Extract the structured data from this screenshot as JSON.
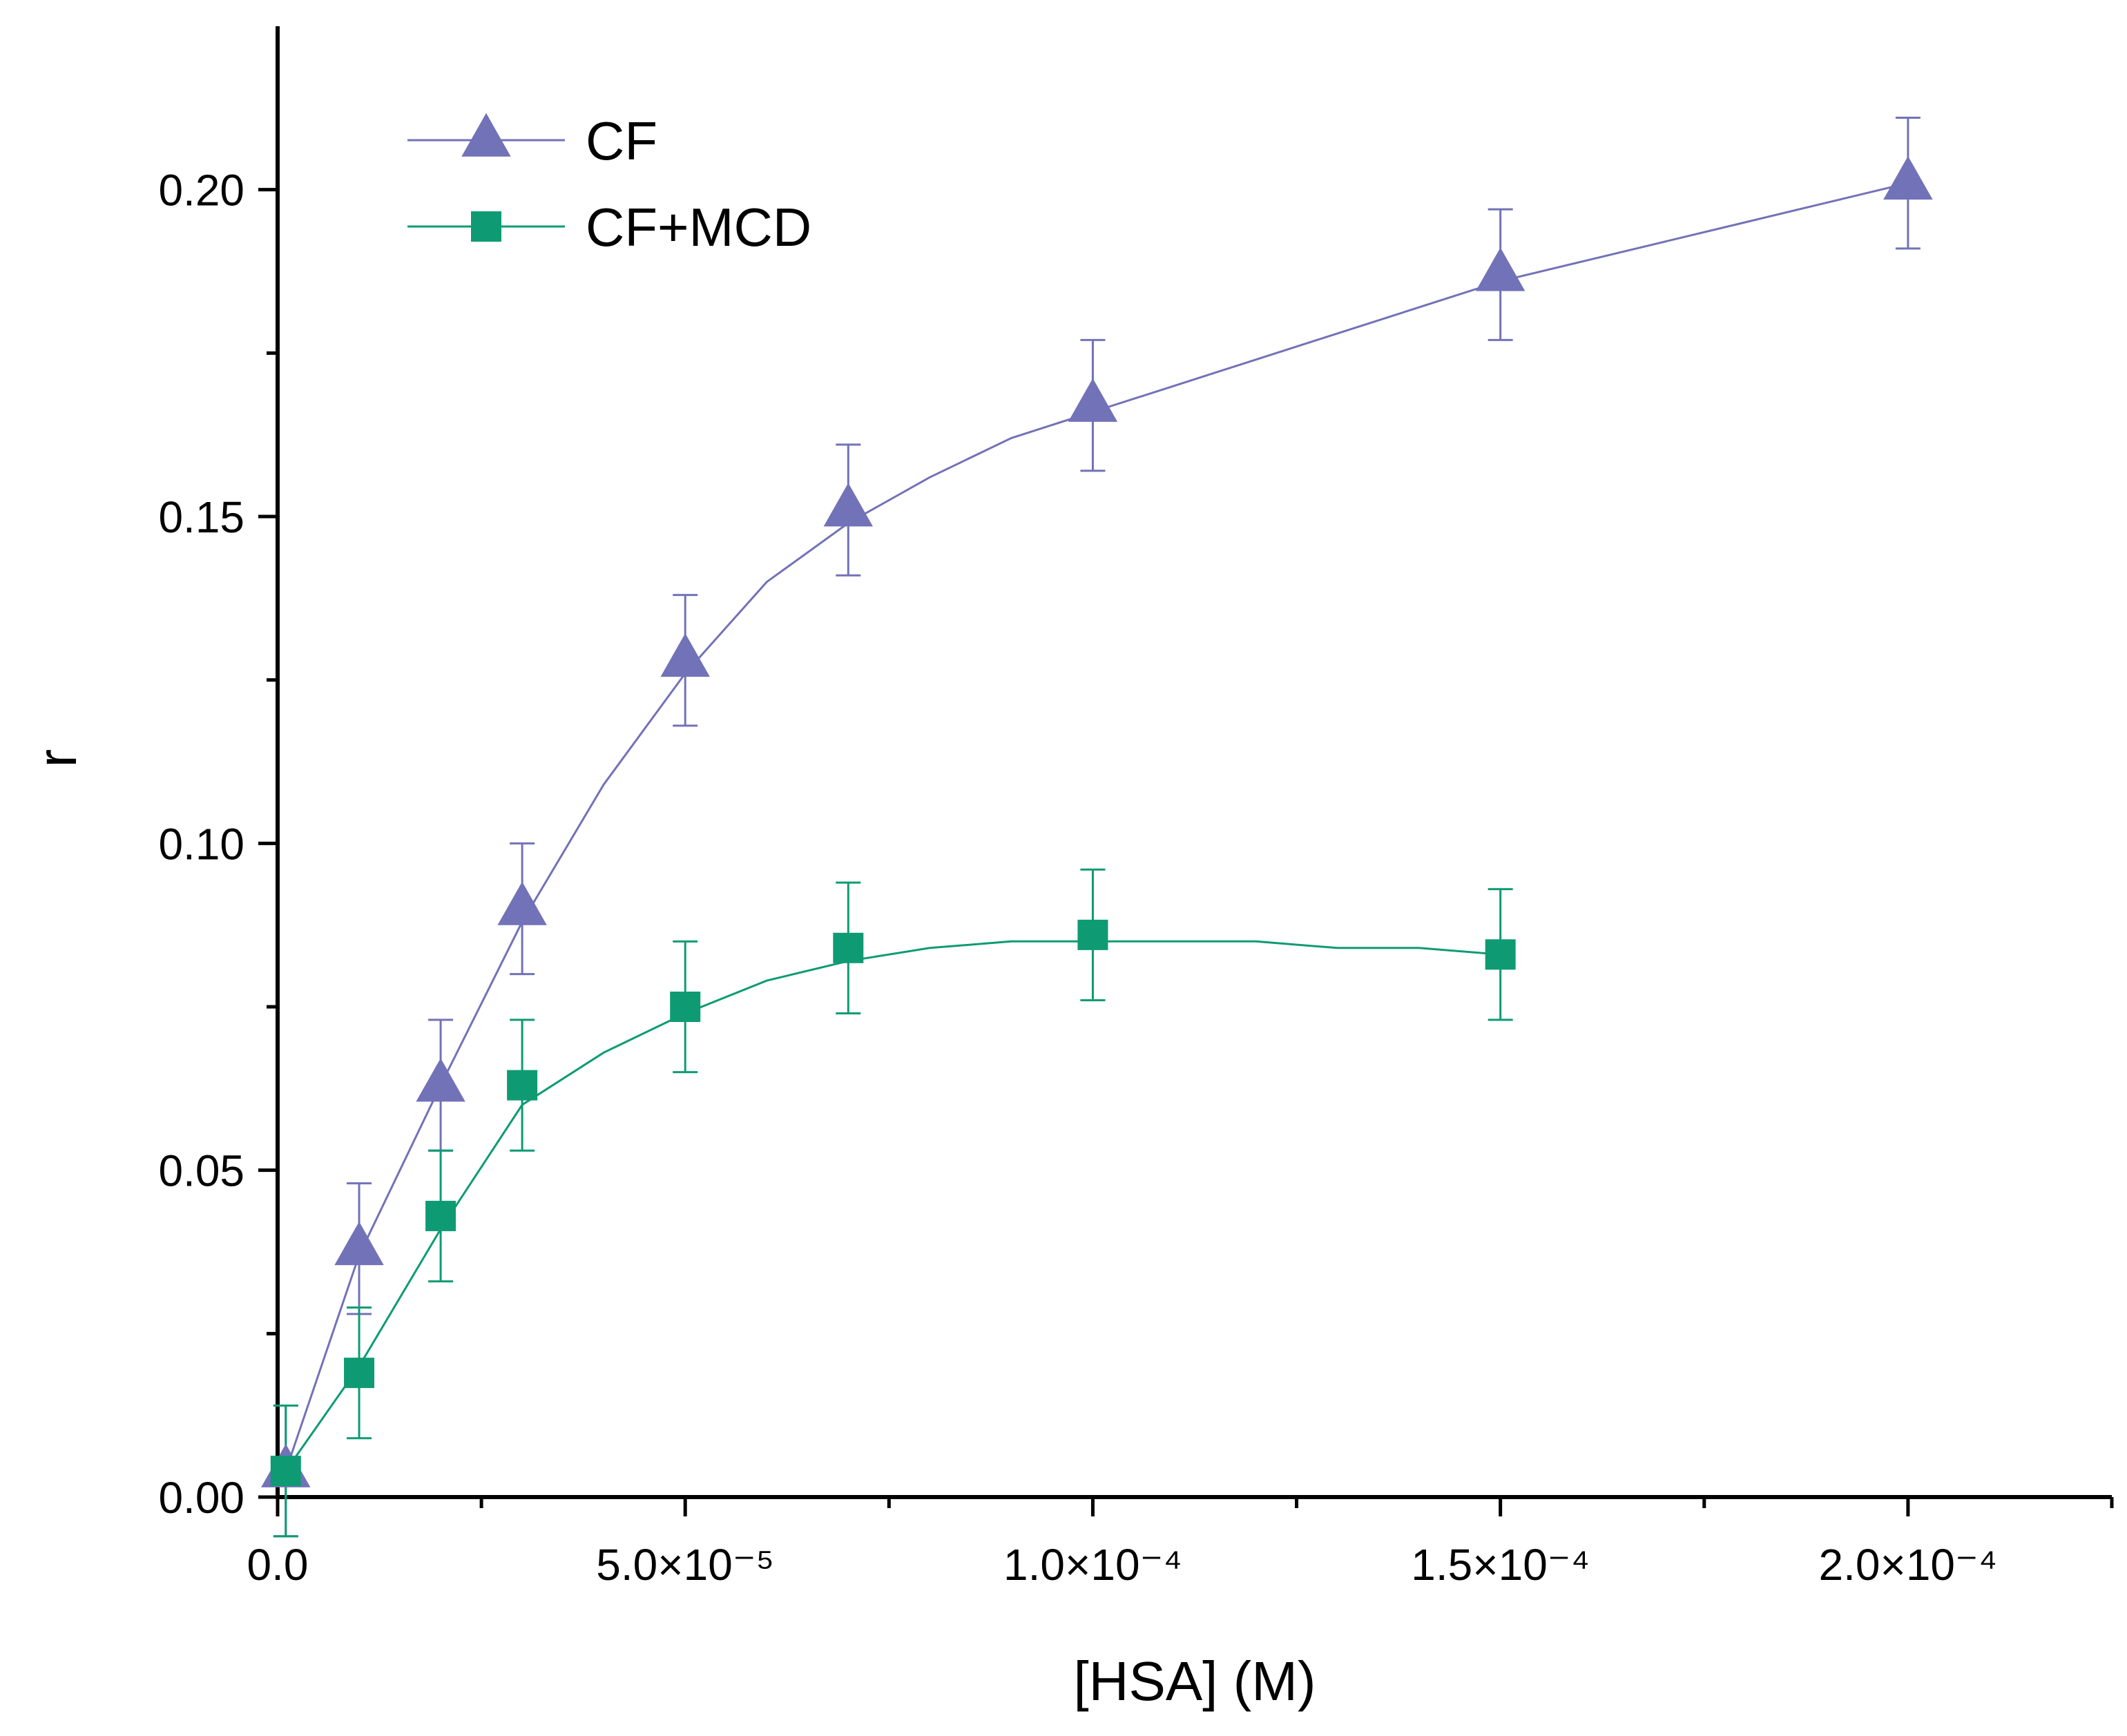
{
  "chart_data": {
    "type": "scatter",
    "title": "",
    "xlabel": "[HSA] (M)",
    "ylabel": "r",
    "xlim": [
      0,
      0.000225
    ],
    "ylim": [
      0,
      0.225
    ],
    "x_ticks": [
      {
        "value": 0,
        "label": "0.0"
      },
      {
        "value": 5e-05,
        "label": "5.0×10⁻⁵"
      },
      {
        "value": 0.0001,
        "label": "1.0×10⁻⁴"
      },
      {
        "value": 0.00015,
        "label": "1.5×10⁻⁴"
      },
      {
        "value": 0.0002,
        "label": "2.0×10⁻⁴"
      }
    ],
    "x_minor_ticks": [
      2.5e-05,
      7.5e-05,
      0.000125,
      0.000175,
      0.000225
    ],
    "y_ticks": [
      {
        "value": 0,
        "label": "0.00"
      },
      {
        "value": 0.05,
        "label": "0.05"
      },
      {
        "value": 0.1,
        "label": "0.10"
      },
      {
        "value": 0.15,
        "label": "0.15"
      },
      {
        "value": 0.2,
        "label": "0.20"
      }
    ],
    "y_minor_ticks": [
      0.025,
      0.075,
      0.125,
      0.175
    ],
    "grid": false,
    "legend_position": "top-left",
    "series": [
      {
        "name": "CF",
        "color": "#7272b8",
        "marker": "triangle",
        "x": [
          1e-06,
          1e-05,
          2e-05,
          3e-05,
          5e-05,
          7e-05,
          0.0001,
          0.00015,
          0.0002
        ],
        "y": [
          0.004,
          0.038,
          0.063,
          0.09,
          0.128,
          0.151,
          0.167,
          0.187,
          0.201
        ],
        "error": [
          0.01,
          0.01,
          0.01,
          0.01,
          0.01,
          0.01,
          0.01,
          0.01,
          0.01
        ],
        "fit": [
          [
            1e-06,
            0.004
          ],
          [
            1e-05,
            0.037
          ],
          [
            2e-05,
            0.063
          ],
          [
            3e-05,
            0.088
          ],
          [
            4e-05,
            0.109
          ],
          [
            5e-05,
            0.126
          ],
          [
            6e-05,
            0.14
          ],
          [
            7e-05,
            0.149
          ],
          [
            8e-05,
            0.156
          ],
          [
            9e-05,
            0.162
          ],
          [
            0.0001,
            0.166
          ],
          [
            0.00011,
            0.17
          ],
          [
            0.00012,
            0.174
          ],
          [
            0.00013,
            0.178
          ],
          [
            0.00014,
            0.182
          ],
          [
            0.00015,
            0.186
          ],
          [
            0.00016,
            0.189
          ],
          [
            0.00017,
            0.192
          ],
          [
            0.00018,
            0.195
          ],
          [
            0.00019,
            0.198
          ],
          [
            0.0002,
            0.201
          ]
        ]
      },
      {
        "name": "CF+MCD",
        "color": "#0e9b73",
        "marker": "square",
        "x": [
          1e-06,
          1e-05,
          2e-05,
          3e-05,
          5e-05,
          7e-05,
          0.0001,
          0.00015
        ],
        "y": [
          0.004,
          0.019,
          0.043,
          0.063,
          0.075,
          0.084,
          0.086,
          0.083
        ],
        "error": [
          0.01,
          0.01,
          0.01,
          0.01,
          0.01,
          0.01,
          0.01,
          0.01
        ],
        "fit": [
          [
            1e-06,
            0.004
          ],
          [
            1e-05,
            0.02
          ],
          [
            2e-05,
            0.041
          ],
          [
            3e-05,
            0.06
          ],
          [
            4e-05,
            0.068
          ],
          [
            5e-05,
            0.074
          ],
          [
            6e-05,
            0.079
          ],
          [
            7e-05,
            0.082
          ],
          [
            8e-05,
            0.084
          ],
          [
            9e-05,
            0.085
          ],
          [
            0.0001,
            0.085
          ],
          [
            0.00011,
            0.085
          ],
          [
            0.00012,
            0.085
          ],
          [
            0.00013,
            0.084
          ],
          [
            0.00014,
            0.084
          ],
          [
            0.00015,
            0.083
          ]
        ]
      }
    ]
  }
}
